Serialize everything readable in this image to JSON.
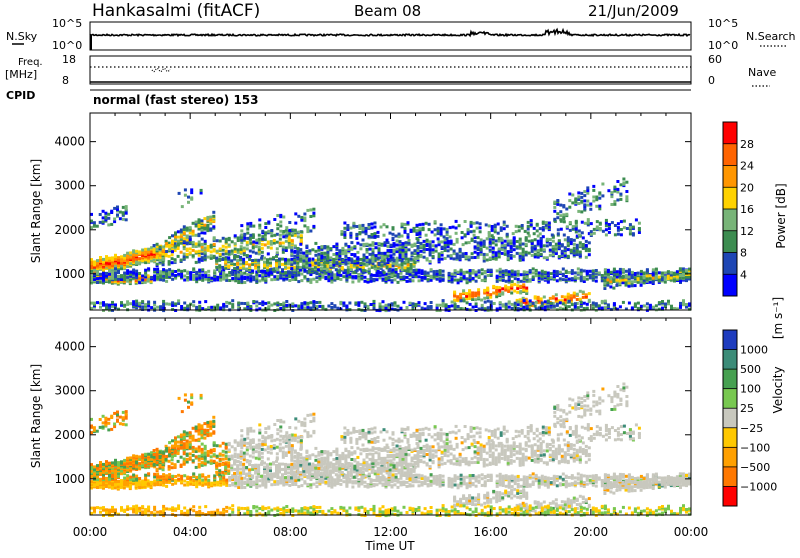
{
  "header": {
    "station": "Hankasalmi (fitACF)",
    "beam": "Beam 08",
    "date": "21/Jun/2009"
  },
  "top_panels": {
    "nsky_label": "N.Sky",
    "nsky_ticks": [
      "10^5",
      "10^0"
    ],
    "nsearch_label": "N.Search",
    "nsearch_ticks": [
      "10^5",
      "10^0"
    ],
    "freq_label": "Freq.",
    "freq_unit": "[MHz]",
    "freq_ticks": [
      "18",
      "8"
    ],
    "nave_label": "Nave",
    "nave_ticks": [
      "60",
      "0"
    ],
    "cpid_label": "CPID",
    "cpid_text": "normal (fast stereo) 153"
  },
  "chart_data": [
    {
      "type": "heatmap",
      "name": "power-panel",
      "ylabel": "Slant Range [km]",
      "xlabel": "",
      "x_ticks": [
        "00:00",
        "04:00",
        "08:00",
        "12:00",
        "16:00",
        "20:00",
        "00:00"
      ],
      "xlim_hours": [
        0,
        24
      ],
      "y_ticks": [
        1000,
        2000,
        3000,
        4000
      ],
      "ylim": [
        180,
        4650
      ],
      "colorbar": {
        "label": "Power [dB]",
        "ticks": [
          "28",
          "24",
          "20",
          "16",
          "12",
          "8",
          "4"
        ],
        "colors": [
          "#ff0000",
          "#ff6400",
          "#ff9600",
          "#ffd200",
          "#78b478",
          "#3c8c50",
          "#1e46b4",
          "#0000ff"
        ]
      }
    },
    {
      "type": "heatmap",
      "name": "velocity-panel",
      "ylabel": "Slant Range [km]",
      "xlabel": "Time UT",
      "x_ticks": [
        "00:00",
        "04:00",
        "08:00",
        "12:00",
        "16:00",
        "20:00",
        "00:00"
      ],
      "xlim_hours": [
        0,
        24
      ],
      "y_ticks": [
        1000,
        2000,
        3000,
        4000
      ],
      "ylim": [
        180,
        4650
      ],
      "colorbar": {
        "label": "Velocity",
        "unit": "[m s⁻¹]",
        "ticks": [
          "1000",
          "500",
          "100",
          "25",
          "−25",
          "−100",
          "−500",
          "−1000"
        ],
        "colors": [
          "#1e3cbe",
          "#3c8c78",
          "#46a050",
          "#78c850",
          "#c8c8be",
          "#ffc800",
          "#ffa000",
          "#ff7800",
          "#ff0000"
        ]
      }
    }
  ]
}
